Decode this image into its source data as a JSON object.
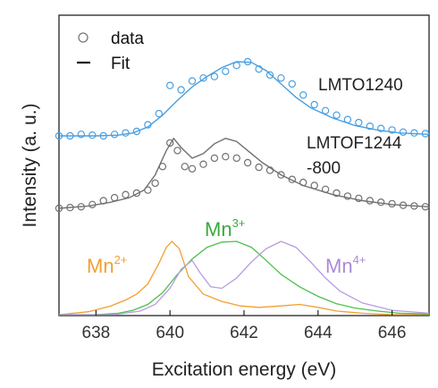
{
  "chart_data": {
    "type": "line",
    "xlabel": "Excitation energy (eV)",
    "ylabel": "Intensity (a. u.)",
    "xlim": [
      637,
      647
    ],
    "xticks": [
      "638",
      "640",
      "642",
      "644",
      "646"
    ],
    "xtick_values": [
      638,
      640,
      642,
      644,
      646
    ],
    "yticks": "none",
    "legend": {
      "placement": "top-left",
      "entries": [
        {
          "label": "data",
          "marker": "open-circle"
        },
        {
          "label": "Fit",
          "marker": "line"
        }
      ]
    },
    "spectra": [
      {
        "label": "LMTO1240",
        "color": "#4a9fe0",
        "baseline": 0.0,
        "fit": {
          "x": [
            637.0,
            638.0,
            638.6,
            639.0,
            639.4,
            639.8,
            640.2,
            640.6,
            641.0,
            641.4,
            641.8,
            642.2,
            642.6,
            643.0,
            643.4,
            643.8,
            644.4,
            645.0,
            645.6,
            646.2,
            647.0
          ],
          "y": [
            0.0,
            0.0,
            0.01,
            0.04,
            0.12,
            0.28,
            0.48,
            0.66,
            0.8,
            0.92,
            1.0,
            0.99,
            0.88,
            0.7,
            0.52,
            0.38,
            0.24,
            0.14,
            0.08,
            0.04,
            0.02
          ]
        },
        "data": {
          "x": [
            637.0,
            637.3,
            637.6,
            637.9,
            638.2,
            638.5,
            638.8,
            639.1,
            639.4,
            639.7,
            640.0,
            640.3,
            640.6,
            640.9,
            641.2,
            641.5,
            641.8,
            642.1,
            642.4,
            642.7,
            643.0,
            643.3,
            643.6,
            643.9,
            644.2,
            644.5,
            644.8,
            645.1,
            645.4,
            645.7,
            646.0,
            646.3,
            646.6,
            646.9
          ],
          "y": [
            0.0,
            0.0,
            0.02,
            0.01,
            0.0,
            0.02,
            0.04,
            0.06,
            0.15,
            0.3,
            0.68,
            0.62,
            0.74,
            0.78,
            0.8,
            0.87,
            0.95,
            1.0,
            0.9,
            0.82,
            0.78,
            0.7,
            0.55,
            0.42,
            0.34,
            0.28,
            0.22,
            0.18,
            0.13,
            0.1,
            0.08,
            0.05,
            0.04,
            0.03
          ]
        }
      },
      {
        "label_lines": [
          "LMTOF1244",
          "-800"
        ],
        "color": "#707070",
        "baseline": 0.0,
        "fit": {
          "x": [
            637.0,
            637.8,
            638.4,
            638.9,
            639.3,
            639.6,
            639.9,
            640.1,
            640.3,
            640.6,
            640.9,
            641.2,
            641.5,
            641.8,
            642.1,
            642.5,
            643.0,
            643.6,
            644.4,
            645.2,
            646.0,
            647.0
          ],
          "y": [
            0.0,
            0.03,
            0.08,
            0.14,
            0.24,
            0.44,
            0.76,
            0.92,
            0.8,
            0.66,
            0.72,
            0.85,
            0.92,
            0.88,
            0.76,
            0.6,
            0.44,
            0.3,
            0.18,
            0.1,
            0.05,
            0.02
          ]
        },
        "data": {
          "x": [
            637.0,
            637.3,
            637.6,
            637.9,
            638.2,
            638.5,
            638.8,
            639.1,
            639.4,
            639.6,
            639.8,
            640.0,
            640.2,
            640.4,
            640.6,
            640.9,
            641.2,
            641.5,
            641.8,
            642.1,
            642.4,
            642.7,
            643.0,
            643.3,
            643.6,
            643.9,
            644.2,
            644.5,
            644.8,
            645.1,
            645.4,
            645.7,
            646.0,
            646.3,
            646.6,
            646.9
          ],
          "y": [
            0.0,
            0.01,
            0.02,
            0.05,
            0.1,
            0.14,
            0.18,
            0.2,
            0.24,
            0.33,
            0.55,
            0.86,
            0.76,
            0.55,
            0.52,
            0.58,
            0.66,
            0.68,
            0.66,
            0.6,
            0.54,
            0.5,
            0.44,
            0.38,
            0.34,
            0.3,
            0.25,
            0.2,
            0.16,
            0.13,
            0.1,
            0.08,
            0.06,
            0.04,
            0.03,
            0.02
          ]
        }
      }
    ],
    "components": [
      {
        "name": "Mn2+",
        "label_base": "Mn",
        "label_sup": "2+",
        "color": "#f0a030",
        "x": [
          637.0,
          637.8,
          638.4,
          638.8,
          639.1,
          639.4,
          639.7,
          639.9,
          640.05,
          640.25,
          640.5,
          640.9,
          641.4,
          641.9,
          642.4,
          643.0,
          643.5,
          644.0,
          644.5,
          645.2,
          646.0,
          647.0
        ],
        "y": [
          0.0,
          0.04,
          0.12,
          0.2,
          0.28,
          0.42,
          0.7,
          0.92,
          1.0,
          0.9,
          0.52,
          0.28,
          0.18,
          0.12,
          0.1,
          0.12,
          0.14,
          0.1,
          0.05,
          0.02,
          0.0,
          0.0
        ]
      },
      {
        "name": "Mn3+",
        "label_base": "Mn",
        "label_sup": "3+",
        "color": "#4cc04c",
        "x": [
          637.0,
          638.0,
          638.6,
          639.0,
          639.4,
          639.8,
          640.2,
          640.6,
          641.0,
          641.4,
          641.8,
          642.2,
          642.6,
          643.0,
          643.5,
          644.0,
          644.5,
          645.0,
          645.6,
          646.2,
          647.0
        ],
        "y": [
          0.0,
          0.0,
          0.02,
          0.06,
          0.14,
          0.3,
          0.55,
          0.76,
          0.92,
          0.99,
          1.0,
          0.92,
          0.74,
          0.55,
          0.38,
          0.25,
          0.15,
          0.09,
          0.05,
          0.02,
          0.01
        ]
      },
      {
        "name": "Mn4+",
        "label_base": "Mn",
        "label_sup": "4+",
        "color": "#b89de0",
        "x": [
          637.0,
          638.5,
          639.2,
          639.6,
          640.0,
          640.3,
          640.6,
          640.8,
          641.1,
          641.4,
          641.8,
          642.2,
          642.6,
          643.0,
          643.4,
          643.8,
          644.2,
          644.6,
          645.2,
          646.0,
          647.0
        ],
        "y": [
          0.0,
          0.0,
          0.05,
          0.14,
          0.36,
          0.62,
          0.74,
          0.58,
          0.38,
          0.36,
          0.5,
          0.72,
          0.9,
          1.0,
          0.92,
          0.72,
          0.5,
          0.32,
          0.16,
          0.06,
          0.02
        ]
      }
    ]
  }
}
